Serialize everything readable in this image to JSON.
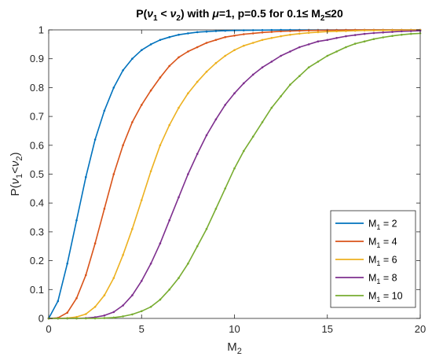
{
  "chart_data": {
    "type": "line",
    "title_parts": [
      "P(",
      "ν",
      "1",
      " < ",
      "ν",
      "2",
      ") with ",
      "μ",
      "=1, p=0.5 for 0.1≤ M",
      "2",
      "≤20"
    ],
    "xlabel_parts": [
      "M",
      "2"
    ],
    "ylabel_parts": [
      "P(",
      "ν",
      "1",
      "<",
      "ν",
      "2",
      ")"
    ],
    "xlim": [
      0,
      20
    ],
    "ylim": [
      0,
      1
    ],
    "xticks": [
      0,
      5,
      10,
      15,
      20
    ],
    "yticks": [
      0,
      0.1,
      0.2,
      0.3,
      0.4,
      0.5,
      0.6,
      0.7,
      0.8,
      0.9,
      1
    ],
    "ytick_labels": [
      "0",
      "0.1",
      "0.2",
      "0.3",
      "0.4",
      "0.5",
      "0.6",
      "0.7",
      "0.8",
      "0.9",
      "1"
    ],
    "xtick_labels": [
      "0",
      "5",
      "10",
      "15",
      "20"
    ],
    "grid": false,
    "legend_position": "bottom-right",
    "x": [
      0,
      0.5,
      1,
      1.5,
      2,
      2.5,
      3,
      3.5,
      4,
      4.5,
      5,
      5.5,
      6,
      6.5,
      7,
      7.5,
      8,
      8.5,
      9,
      9.5,
      10,
      10.5,
      11,
      11.5,
      12,
      12.5,
      13,
      13.5,
      14,
      14.5,
      15,
      15.5,
      16,
      16.5,
      17,
      17.5,
      18,
      18.5,
      19,
      19.5,
      20
    ],
    "series": [
      {
        "legend_parts": [
          "M",
          "1",
          " = 2"
        ],
        "color": "#0072BD",
        "values": [
          0,
          0.06,
          0.19,
          0.34,
          0.49,
          0.62,
          0.72,
          0.8,
          0.86,
          0.9,
          0.93,
          0.95,
          0.965,
          0.975,
          0.983,
          0.988,
          0.992,
          0.994,
          0.996,
          0.997,
          0.998,
          0.9985,
          0.999,
          0.9993,
          0.9995,
          0.9996,
          0.9997,
          0.9998,
          0.9998,
          0.9999,
          0.9999,
          0.9999,
          1,
          1,
          1,
          1,
          1,
          1,
          1,
          1,
          1
        ]
      },
      {
        "legend_parts": [
          "M",
          "1",
          " = 4"
        ],
        "color": "#D95319",
        "values": [
          0,
          0.002,
          0.02,
          0.07,
          0.15,
          0.26,
          0.38,
          0.5,
          0.6,
          0.68,
          0.74,
          0.79,
          0.835,
          0.875,
          0.905,
          0.925,
          0.94,
          0.955,
          0.965,
          0.975,
          0.98,
          0.985,
          0.988,
          0.991,
          0.993,
          0.995,
          0.996,
          0.997,
          0.998,
          0.9985,
          0.999,
          0.9993,
          0.9995,
          0.9996,
          0.9997,
          0.9998,
          0.9998,
          0.9999,
          0.9999,
          1,
          1
        ]
      },
      {
        "legend_parts": [
          "M",
          "1",
          " = 6"
        ],
        "color": "#EDB120",
        "values": [
          0,
          0,
          0.001,
          0.005,
          0.015,
          0.04,
          0.08,
          0.14,
          0.22,
          0.31,
          0.41,
          0.51,
          0.6,
          0.67,
          0.73,
          0.78,
          0.82,
          0.855,
          0.885,
          0.91,
          0.93,
          0.945,
          0.955,
          0.965,
          0.972,
          0.978,
          0.983,
          0.987,
          0.99,
          0.992,
          0.994,
          0.995,
          0.996,
          0.997,
          0.998,
          0.998,
          0.9985,
          0.999,
          0.999,
          0.9993,
          0.9995
        ]
      },
      {
        "legend_parts": [
          "M",
          "1",
          " = 8"
        ],
        "color": "#7E2F8E",
        "values": [
          0,
          0,
          0,
          0,
          0.001,
          0.004,
          0.01,
          0.022,
          0.045,
          0.08,
          0.13,
          0.19,
          0.26,
          0.34,
          0.42,
          0.5,
          0.57,
          0.635,
          0.69,
          0.74,
          0.78,
          0.815,
          0.845,
          0.87,
          0.89,
          0.91,
          0.925,
          0.94,
          0.95,
          0.96,
          0.965,
          0.972,
          0.978,
          0.982,
          0.986,
          0.989,
          0.991,
          0.993,
          0.995,
          0.996,
          0.997
        ]
      },
      {
        "legend_parts": [
          "M",
          "1",
          " = 10"
        ],
        "color": "#77AC30",
        "values": [
          0,
          0,
          0,
          0,
          0,
          0,
          0.001,
          0.003,
          0.007,
          0.014,
          0.025,
          0.04,
          0.065,
          0.1,
          0.14,
          0.19,
          0.25,
          0.31,
          0.38,
          0.45,
          0.52,
          0.58,
          0.63,
          0.68,
          0.73,
          0.77,
          0.81,
          0.84,
          0.87,
          0.89,
          0.91,
          0.925,
          0.94,
          0.952,
          0.96,
          0.968,
          0.974,
          0.979,
          0.983,
          0.986,
          0.988
        ]
      }
    ]
  }
}
